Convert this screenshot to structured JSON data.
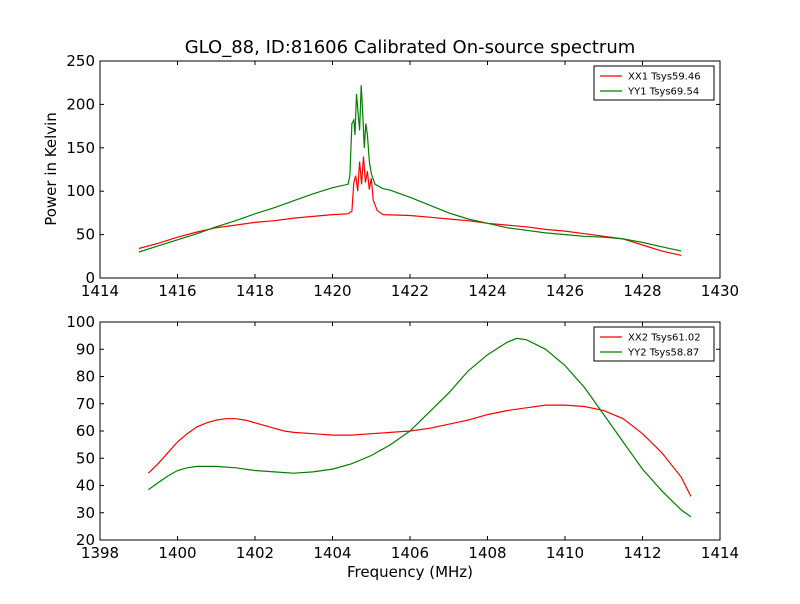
{
  "figure": {
    "title": "GLO_88, ID:81606 Calibrated On-source spectrum",
    "ylabel": "Power in Kelvin",
    "xlabel": "Frequency (MHz)"
  },
  "chart_data": [
    {
      "type": "line",
      "title": "GLO_88, ID:81606 Calibrated On-source spectrum",
      "xlabel": "",
      "ylabel": "Power in Kelvin",
      "xlim": [
        1414,
        1430
      ],
      "ylim": [
        0,
        250
      ],
      "xticks": [
        1414,
        1416,
        1418,
        1420,
        1422,
        1424,
        1426,
        1428,
        1430
      ],
      "yticks": [
        0,
        50,
        100,
        150,
        200,
        250
      ],
      "grid": false,
      "legend_position": "top-right",
      "series": [
        {
          "name": "XX1 Tsys59.46",
          "color": "#ff0000",
          "points": [
            [
              1415.0,
              34
            ],
            [
              1415.5,
              40
            ],
            [
              1416.0,
              47
            ],
            [
              1416.5,
              53
            ],
            [
              1417.0,
              58
            ],
            [
              1417.5,
              61
            ],
            [
              1418.0,
              64
            ],
            [
              1418.5,
              66
            ],
            [
              1419.0,
              69
            ],
            [
              1419.5,
              71
            ],
            [
              1420.0,
              73
            ],
            [
              1420.4,
              74
            ],
            [
              1420.5,
              77
            ],
            [
              1420.55,
              110
            ],
            [
              1420.6,
              118
            ],
            [
              1420.65,
              100
            ],
            [
              1420.7,
              134
            ],
            [
              1420.75,
              108
            ],
            [
              1420.8,
              140
            ],
            [
              1420.85,
              110
            ],
            [
              1420.9,
              123
            ],
            [
              1420.95,
              102
            ],
            [
              1421.0,
              115
            ],
            [
              1421.05,
              90
            ],
            [
              1421.15,
              78
            ],
            [
              1421.3,
              73
            ],
            [
              1422.0,
              72
            ],
            [
              1422.5,
              70
            ],
            [
              1423.0,
              68
            ],
            [
              1423.5,
              66
            ],
            [
              1424.0,
              63
            ],
            [
              1424.5,
              61
            ],
            [
              1425.0,
              59
            ],
            [
              1425.5,
              56
            ],
            [
              1426.0,
              54
            ],
            [
              1426.5,
              51
            ],
            [
              1427.0,
              48
            ],
            [
              1427.5,
              45
            ],
            [
              1428.0,
              38
            ],
            [
              1428.5,
              31
            ],
            [
              1429.0,
              26
            ]
          ]
        },
        {
          "name": "YY1 Tsys69.54",
          "color": "#008000",
          "points": [
            [
              1415.0,
              30
            ],
            [
              1415.5,
              37
            ],
            [
              1416.0,
              44
            ],
            [
              1416.5,
              51
            ],
            [
              1417.0,
              59
            ],
            [
              1417.5,
              66
            ],
            [
              1418.0,
              74
            ],
            [
              1418.5,
              81
            ],
            [
              1419.0,
              89
            ],
            [
              1419.5,
              97
            ],
            [
              1420.0,
              104
            ],
            [
              1420.4,
              108
            ],
            [
              1420.45,
              118
            ],
            [
              1420.5,
              178
            ],
            [
              1420.55,
              182
            ],
            [
              1420.58,
              165
            ],
            [
              1420.62,
              212
            ],
            [
              1420.66,
              190
            ],
            [
              1420.7,
              170
            ],
            [
              1420.74,
              222
            ],
            [
              1420.78,
              190
            ],
            [
              1420.82,
              150
            ],
            [
              1420.86,
              178
            ],
            [
              1420.9,
              165
            ],
            [
              1420.95,
              135
            ],
            [
              1421.0,
              120
            ],
            [
              1421.1,
              108
            ],
            [
              1421.3,
              103
            ],
            [
              1421.5,
              101
            ],
            [
              1422.0,
              93
            ],
            [
              1422.5,
              84
            ],
            [
              1423.0,
              75
            ],
            [
              1423.5,
              68
            ],
            [
              1424.0,
              63
            ],
            [
              1424.5,
              58
            ],
            [
              1425.0,
              55
            ],
            [
              1425.5,
              52
            ],
            [
              1426.0,
              50
            ],
            [
              1426.5,
              48
            ],
            [
              1427.0,
              47
            ],
            [
              1427.5,
              45
            ],
            [
              1428.0,
              41
            ],
            [
              1428.5,
              36
            ],
            [
              1429.0,
              31
            ]
          ]
        }
      ]
    },
    {
      "type": "line",
      "title": "",
      "xlabel": "Frequency (MHz)",
      "ylabel": "",
      "xlim": [
        1398,
        1414
      ],
      "ylim": [
        20,
        100
      ],
      "xticks": [
        1398,
        1400,
        1402,
        1404,
        1406,
        1408,
        1410,
        1412,
        1414
      ],
      "yticks": [
        20,
        30,
        40,
        50,
        60,
        70,
        80,
        90,
        100
      ],
      "grid": false,
      "legend_position": "top-right",
      "series": [
        {
          "name": "XX2 Tsys61.02",
          "color": "#ff0000",
          "points": [
            [
              1399.25,
              44.5
            ],
            [
              1399.5,
              48
            ],
            [
              1399.75,
              52
            ],
            [
              1400.0,
              56
            ],
            [
              1400.25,
              59
            ],
            [
              1400.5,
              61.5
            ],
            [
              1400.75,
              63
            ],
            [
              1401.0,
              64
            ],
            [
              1401.25,
              64.5
            ],
            [
              1401.5,
              64.5
            ],
            [
              1401.75,
              64
            ],
            [
              1402.0,
              63
            ],
            [
              1402.25,
              62
            ],
            [
              1402.5,
              61
            ],
            [
              1402.75,
              60
            ],
            [
              1403.0,
              59.5
            ],
            [
              1403.5,
              59
            ],
            [
              1404.0,
              58.5
            ],
            [
              1404.5,
              58.5
            ],
            [
              1405.0,
              59
            ],
            [
              1405.5,
              59.5
            ],
            [
              1406.0,
              60
            ],
            [
              1406.5,
              61
            ],
            [
              1407.0,
              62.5
            ],
            [
              1407.5,
              64
            ],
            [
              1408.0,
              66
            ],
            [
              1408.5,
              67.5
            ],
            [
              1409.0,
              68.5
            ],
            [
              1409.5,
              69.5
            ],
            [
              1410.0,
              69.5
            ],
            [
              1410.5,
              69
            ],
            [
              1411.0,
              67.5
            ],
            [
              1411.5,
              64.5
            ],
            [
              1412.0,
              59
            ],
            [
              1412.5,
              52
            ],
            [
              1413.0,
              43
            ],
            [
              1413.25,
              36
            ]
          ]
        },
        {
          "name": "YY2 Tsys58.87",
          "color": "#008000",
          "points": [
            [
              1399.25,
              38.5
            ],
            [
              1399.5,
              41
            ],
            [
              1399.75,
              43.5
            ],
            [
              1400.0,
              45.5
            ],
            [
              1400.25,
              46.5
            ],
            [
              1400.5,
              47
            ],
            [
              1400.75,
              47
            ],
            [
              1401.0,
              47
            ],
            [
              1401.5,
              46.5
            ],
            [
              1402.0,
              45.5
            ],
            [
              1402.5,
              45
            ],
            [
              1403.0,
              44.5
            ],
            [
              1403.5,
              45
            ],
            [
              1404.0,
              46
            ],
            [
              1404.5,
              48
            ],
            [
              1405.0,
              51
            ],
            [
              1405.5,
              55
            ],
            [
              1406.0,
              60
            ],
            [
              1406.5,
              67
            ],
            [
              1407.0,
              74
            ],
            [
              1407.5,
              82
            ],
            [
              1408.0,
              88
            ],
            [
              1408.5,
              92.5
            ],
            [
              1408.75,
              94
            ],
            [
              1409.0,
              93.5
            ],
            [
              1409.5,
              90
            ],
            [
              1410.0,
              84
            ],
            [
              1410.5,
              76
            ],
            [
              1411.0,
              66
            ],
            [
              1411.5,
              56
            ],
            [
              1412.0,
              46
            ],
            [
              1412.5,
              38
            ],
            [
              1413.0,
              31
            ],
            [
              1413.25,
              28.5
            ]
          ]
        }
      ]
    }
  ]
}
